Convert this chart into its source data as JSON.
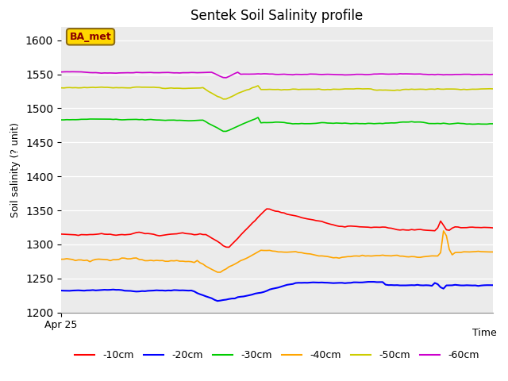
{
  "title": "Sentek Soil Salinity profile",
  "xlabel": "Time",
  "ylabel": "Soil salinity (? unit)",
  "ylim": [
    1200,
    1620
  ],
  "yticks": [
    1200,
    1250,
    1300,
    1350,
    1400,
    1450,
    1500,
    1550,
    1600
  ],
  "xlabel_tick": "Apr 25",
  "annotation_text": "BA_met",
  "annotation_color": "#8B0000",
  "annotation_bg": "#FFD700",
  "annotation_edge": "#8B6914",
  "bg_color": "#EBEBEB",
  "series_colors": {
    "-10cm": "#FF0000",
    "-20cm": "#0000FF",
    "-30cm": "#00CC00",
    "-40cm": "#FFA500",
    "-50cm": "#CCCC00",
    "-60cm": "#CC00CC"
  },
  "n_points": 150
}
